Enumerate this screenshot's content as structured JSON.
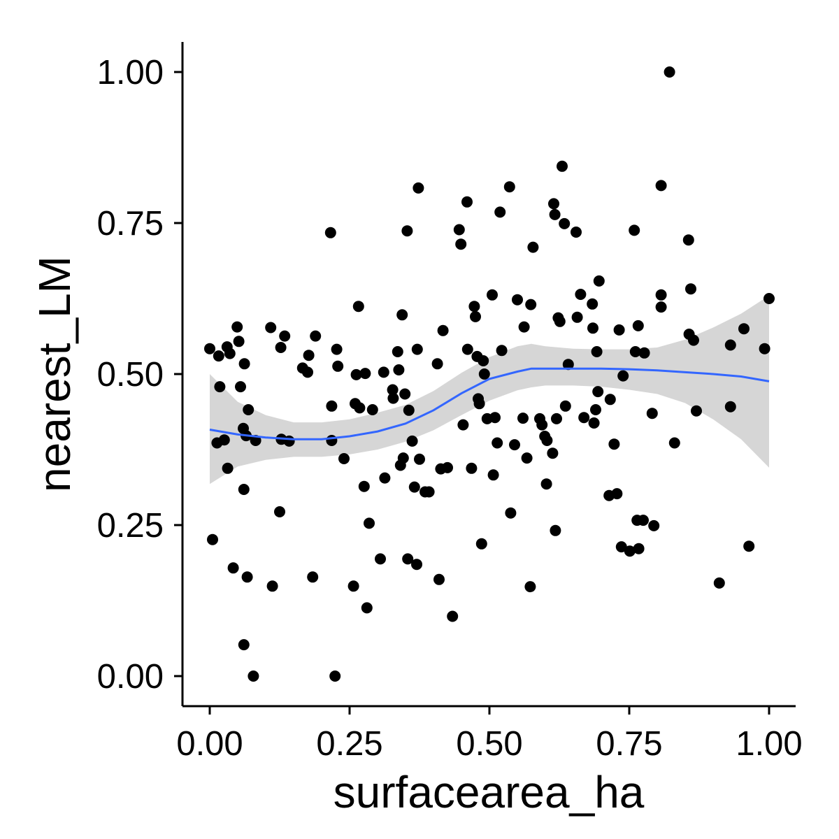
{
  "chart_data": {
    "type": "scatter",
    "title": "",
    "xlabel": "surfacearea_ha",
    "ylabel": "nearest_LM",
    "xlim": [
      -0.05,
      1.05
    ],
    "ylim": [
      -0.05,
      1.05
    ],
    "x_ticks": [
      {
        "value": 0.0,
        "label": "0.00"
      },
      {
        "value": 0.25,
        "label": "0.25"
      },
      {
        "value": 0.5,
        "label": "0.50"
      },
      {
        "value": 0.75,
        "label": "0.75"
      },
      {
        "value": 1.0,
        "label": "1.00"
      }
    ],
    "y_ticks": [
      {
        "value": 0.0,
        "label": "0.00"
      },
      {
        "value": 0.25,
        "label": "0.25"
      },
      {
        "value": 0.5,
        "label": "0.50"
      },
      {
        "value": 0.75,
        "label": "0.75"
      },
      {
        "value": 1.0,
        "label": "1.00"
      }
    ],
    "grid": false,
    "legend": "none",
    "colors": {
      "points": "#000000",
      "smooth_line": "#3366FF",
      "confidence_band": "#999999",
      "axis": "#000000"
    },
    "points": [
      [
        0.0,
        0.542
      ],
      [
        0.005,
        0.226
      ],
      [
        0.013,
        0.386
      ],
      [
        0.016,
        0.53
      ],
      [
        0.018,
        0.479
      ],
      [
        0.026,
        0.391
      ],
      [
        0.031,
        0.545
      ],
      [
        0.032,
        0.344
      ],
      [
        0.036,
        0.534
      ],
      [
        0.042,
        0.179
      ],
      [
        0.049,
        0.578
      ],
      [
        0.052,
        0.554
      ],
      [
        0.055,
        0.479
      ],
      [
        0.06,
        0.41
      ],
      [
        0.061,
        0.309
      ],
      [
        0.061,
        0.052
      ],
      [
        0.062,
        0.517
      ],
      [
        0.065,
        0.398
      ],
      [
        0.067,
        0.164
      ],
      [
        0.069,
        0.441
      ],
      [
        0.078,
        0.0
      ],
      [
        0.082,
        0.39
      ],
      [
        0.109,
        0.577
      ],
      [
        0.112,
        0.149
      ],
      [
        0.125,
        0.272
      ],
      [
        0.127,
        0.544
      ],
      [
        0.128,
        0.392
      ],
      [
        0.134,
        0.563
      ],
      [
        0.142,
        0.389
      ],
      [
        0.166,
        0.51
      ],
      [
        0.175,
        0.503
      ],
      [
        0.177,
        0.531
      ],
      [
        0.184,
        0.164
      ],
      [
        0.189,
        0.563
      ],
      [
        0.216,
        0.734
      ],
      [
        0.218,
        0.447
      ],
      [
        0.218,
        0.39
      ],
      [
        0.224,
        0.0
      ],
      [
        0.227,
        0.541
      ],
      [
        0.229,
        0.513
      ],
      [
        0.24,
        0.36
      ],
      [
        0.257,
        0.149
      ],
      [
        0.26,
        0.451
      ],
      [
        0.262,
        0.499
      ],
      [
        0.266,
        0.612
      ],
      [
        0.268,
        0.444
      ],
      [
        0.276,
        0.314
      ],
      [
        0.278,
        0.501
      ],
      [
        0.281,
        0.113
      ],
      [
        0.285,
        0.253
      ],
      [
        0.291,
        0.441
      ],
      [
        0.305,
        0.194
      ],
      [
        0.311,
        0.503
      ],
      [
        0.313,
        0.328
      ],
      [
        0.327,
        0.474
      ],
      [
        0.328,
        0.46
      ],
      [
        0.336,
        0.537
      ],
      [
        0.338,
        0.507
      ],
      [
        0.341,
        0.349
      ],
      [
        0.344,
        0.598
      ],
      [
        0.346,
        0.361
      ],
      [
        0.349,
        0.467
      ],
      [
        0.353,
        0.737
      ],
      [
        0.354,
        0.194
      ],
      [
        0.356,
        0.44
      ],
      [
        0.362,
        0.389
      ],
      [
        0.366,
        0.313
      ],
      [
        0.37,
        0.185
      ],
      [
        0.371,
        0.541
      ],
      [
        0.373,
        0.808
      ],
      [
        0.375,
        0.359
      ],
      [
        0.385,
        0.305
      ],
      [
        0.392,
        0.305
      ],
      [
        0.407,
        0.517
      ],
      [
        0.41,
        0.16
      ],
      [
        0.413,
        0.343
      ],
      [
        0.417,
        0.572
      ],
      [
        0.425,
        0.345
      ],
      [
        0.434,
        0.099
      ],
      [
        0.446,
        0.739
      ],
      [
        0.449,
        0.715
      ],
      [
        0.453,
        0.416
      ],
      [
        0.46,
        0.785
      ],
      [
        0.461,
        0.541
      ],
      [
        0.468,
        0.344
      ],
      [
        0.473,
        0.612
      ],
      [
        0.475,
        0.595
      ],
      [
        0.478,
        0.529
      ],
      [
        0.48,
        0.459
      ],
      [
        0.482,
        0.451
      ],
      [
        0.486,
        0.219
      ],
      [
        0.489,
        0.522
      ],
      [
        0.491,
        0.5
      ],
      [
        0.496,
        0.426
      ],
      [
        0.505,
        0.631
      ],
      [
        0.507,
        0.333
      ],
      [
        0.51,
        0.428
      ],
      [
        0.514,
        0.386
      ],
      [
        0.519,
        0.768
      ],
      [
        0.522,
        0.539
      ],
      [
        0.536,
        0.81
      ],
      [
        0.538,
        0.27
      ],
      [
        0.545,
        0.383
      ],
      [
        0.55,
        0.623
      ],
      [
        0.56,
        0.427
      ],
      [
        0.562,
        0.578
      ],
      [
        0.567,
        0.361
      ],
      [
        0.573,
        0.148
      ],
      [
        0.574,
        0.615
      ],
      [
        0.578,
        0.71
      ],
      [
        0.59,
        0.426
      ],
      [
        0.594,
        0.416
      ],
      [
        0.599,
        0.397
      ],
      [
        0.602,
        0.318
      ],
      [
        0.603,
        0.39
      ],
      [
        0.613,
        0.369
      ],
      [
        0.615,
        0.782
      ],
      [
        0.617,
        0.764
      ],
      [
        0.618,
        0.241
      ],
      [
        0.62,
        0.426
      ],
      [
        0.623,
        0.593
      ],
      [
        0.626,
        0.587
      ],
      [
        0.63,
        0.844
      ],
      [
        0.634,
        0.749
      ],
      [
        0.636,
        0.447
      ],
      [
        0.641,
        0.516
      ],
      [
        0.655,
        0.735
      ],
      [
        0.657,
        0.594
      ],
      [
        0.663,
        0.632
      ],
      [
        0.669,
        0.428
      ],
      [
        0.684,
        0.616
      ],
      [
        0.685,
        0.576
      ],
      [
        0.687,
        0.419
      ],
      [
        0.69,
        0.441
      ],
      [
        0.692,
        0.537
      ],
      [
        0.694,
        0.471
      ],
      [
        0.696,
        0.654
      ],
      [
        0.714,
        0.299
      ],
      [
        0.716,
        0.458
      ],
      [
        0.723,
        0.384
      ],
      [
        0.728,
        0.302
      ],
      [
        0.732,
        0.573
      ],
      [
        0.736,
        0.214
      ],
      [
        0.739,
        0.497
      ],
      [
        0.751,
        0.207
      ],
      [
        0.759,
        0.738
      ],
      [
        0.761,
        0.537
      ],
      [
        0.764,
        0.258
      ],
      [
        0.766,
        0.58
      ],
      [
        0.767,
        0.211
      ],
      [
        0.775,
        0.258
      ],
      [
        0.777,
        0.535
      ],
      [
        0.791,
        0.435
      ],
      [
        0.794,
        0.249
      ],
      [
        0.807,
        0.812
      ],
      [
        0.807,
        0.631
      ],
      [
        0.807,
        0.611
      ],
      [
        0.822,
        1.0
      ],
      [
        0.831,
        0.386
      ],
      [
        0.856,
        0.722
      ],
      [
        0.857,
        0.566
      ],
      [
        0.86,
        0.641
      ],
      [
        0.865,
        0.556
      ],
      [
        0.87,
        0.439
      ],
      [
        0.911,
        0.154
      ],
      [
        0.931,
        0.548
      ],
      [
        0.931,
        0.446
      ],
      [
        0.955,
        0.575
      ],
      [
        0.964,
        0.215
      ],
      [
        0.992,
        0.542
      ],
      [
        1.0,
        0.625
      ]
    ],
    "smooth": {
      "method": "loess",
      "x": [
        0.0,
        0.05,
        0.1,
        0.15,
        0.2,
        0.25,
        0.3,
        0.35,
        0.4,
        0.45,
        0.5,
        0.55,
        0.575,
        0.6,
        0.65,
        0.7,
        0.75,
        0.8,
        0.85,
        0.9,
        0.95,
        1.0
      ],
      "y": [
        0.408,
        0.4,
        0.395,
        0.392,
        0.392,
        0.397,
        0.405,
        0.418,
        0.44,
        0.468,
        0.492,
        0.504,
        0.509,
        0.509,
        0.509,
        0.509,
        0.508,
        0.506,
        0.503,
        0.5,
        0.496,
        0.488
      ],
      "lower": [
        0.318,
        0.347,
        0.358,
        0.363,
        0.363,
        0.367,
        0.375,
        0.388,
        0.407,
        0.432,
        0.456,
        0.473,
        0.478,
        0.481,
        0.481,
        0.479,
        0.474,
        0.467,
        0.452,
        0.425,
        0.392,
        0.345
      ],
      "upper": [
        0.5,
        0.454,
        0.432,
        0.42,
        0.42,
        0.425,
        0.436,
        0.449,
        0.472,
        0.502,
        0.528,
        0.546,
        0.55,
        0.546,
        0.542,
        0.541,
        0.541,
        0.544,
        0.557,
        0.577,
        0.6,
        0.63
      ]
    }
  }
}
